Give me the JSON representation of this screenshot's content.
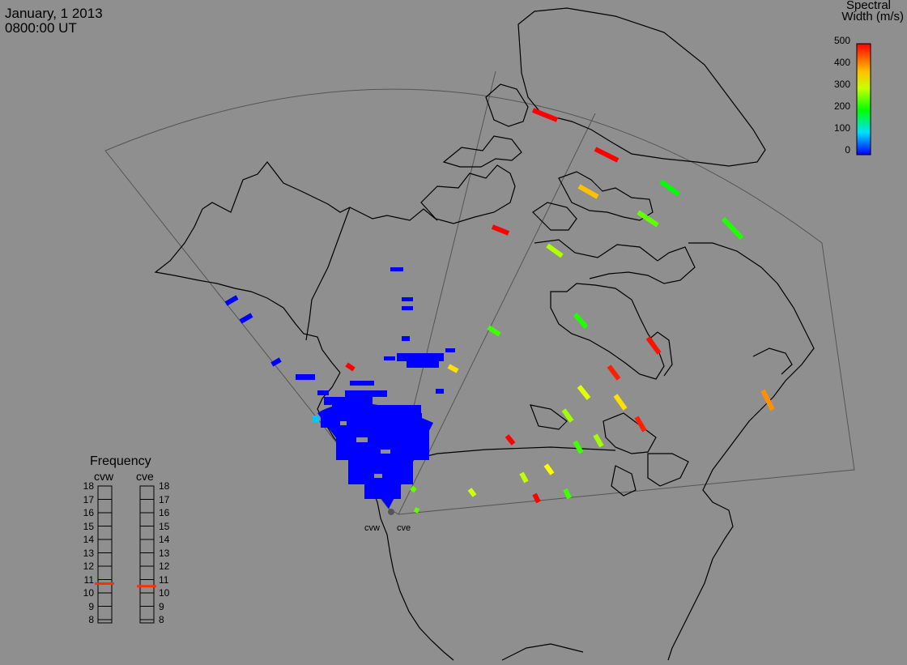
{
  "header": {
    "date": "January, 1 2013",
    "time": "0800:00 UT"
  },
  "colorbar": {
    "title_line1": "Spectral",
    "title_line2": "Width (m/s)",
    "ticks": [
      "500",
      "400",
      "300",
      "200",
      "100",
      "0"
    ],
    "min": 0,
    "max": 500,
    "colors": [
      "#0000ff",
      "#00e0ff",
      "#00ff00",
      "#ffff00",
      "#ff8000",
      "#ff0000"
    ]
  },
  "frequency_panel": {
    "title": "Frequency",
    "radars": [
      {
        "name": "cvw",
        "frequency_mhz": 10.7
      },
      {
        "name": "cve",
        "frequency_mhz": 10.5
      }
    ],
    "scale": [
      "18",
      "17",
      "16",
      "15",
      "14",
      "13",
      "12",
      "11",
      "10",
      "9",
      "8"
    ]
  },
  "radar_sites": [
    {
      "name": "cvw"
    },
    {
      "name": "cve"
    }
  ]
}
